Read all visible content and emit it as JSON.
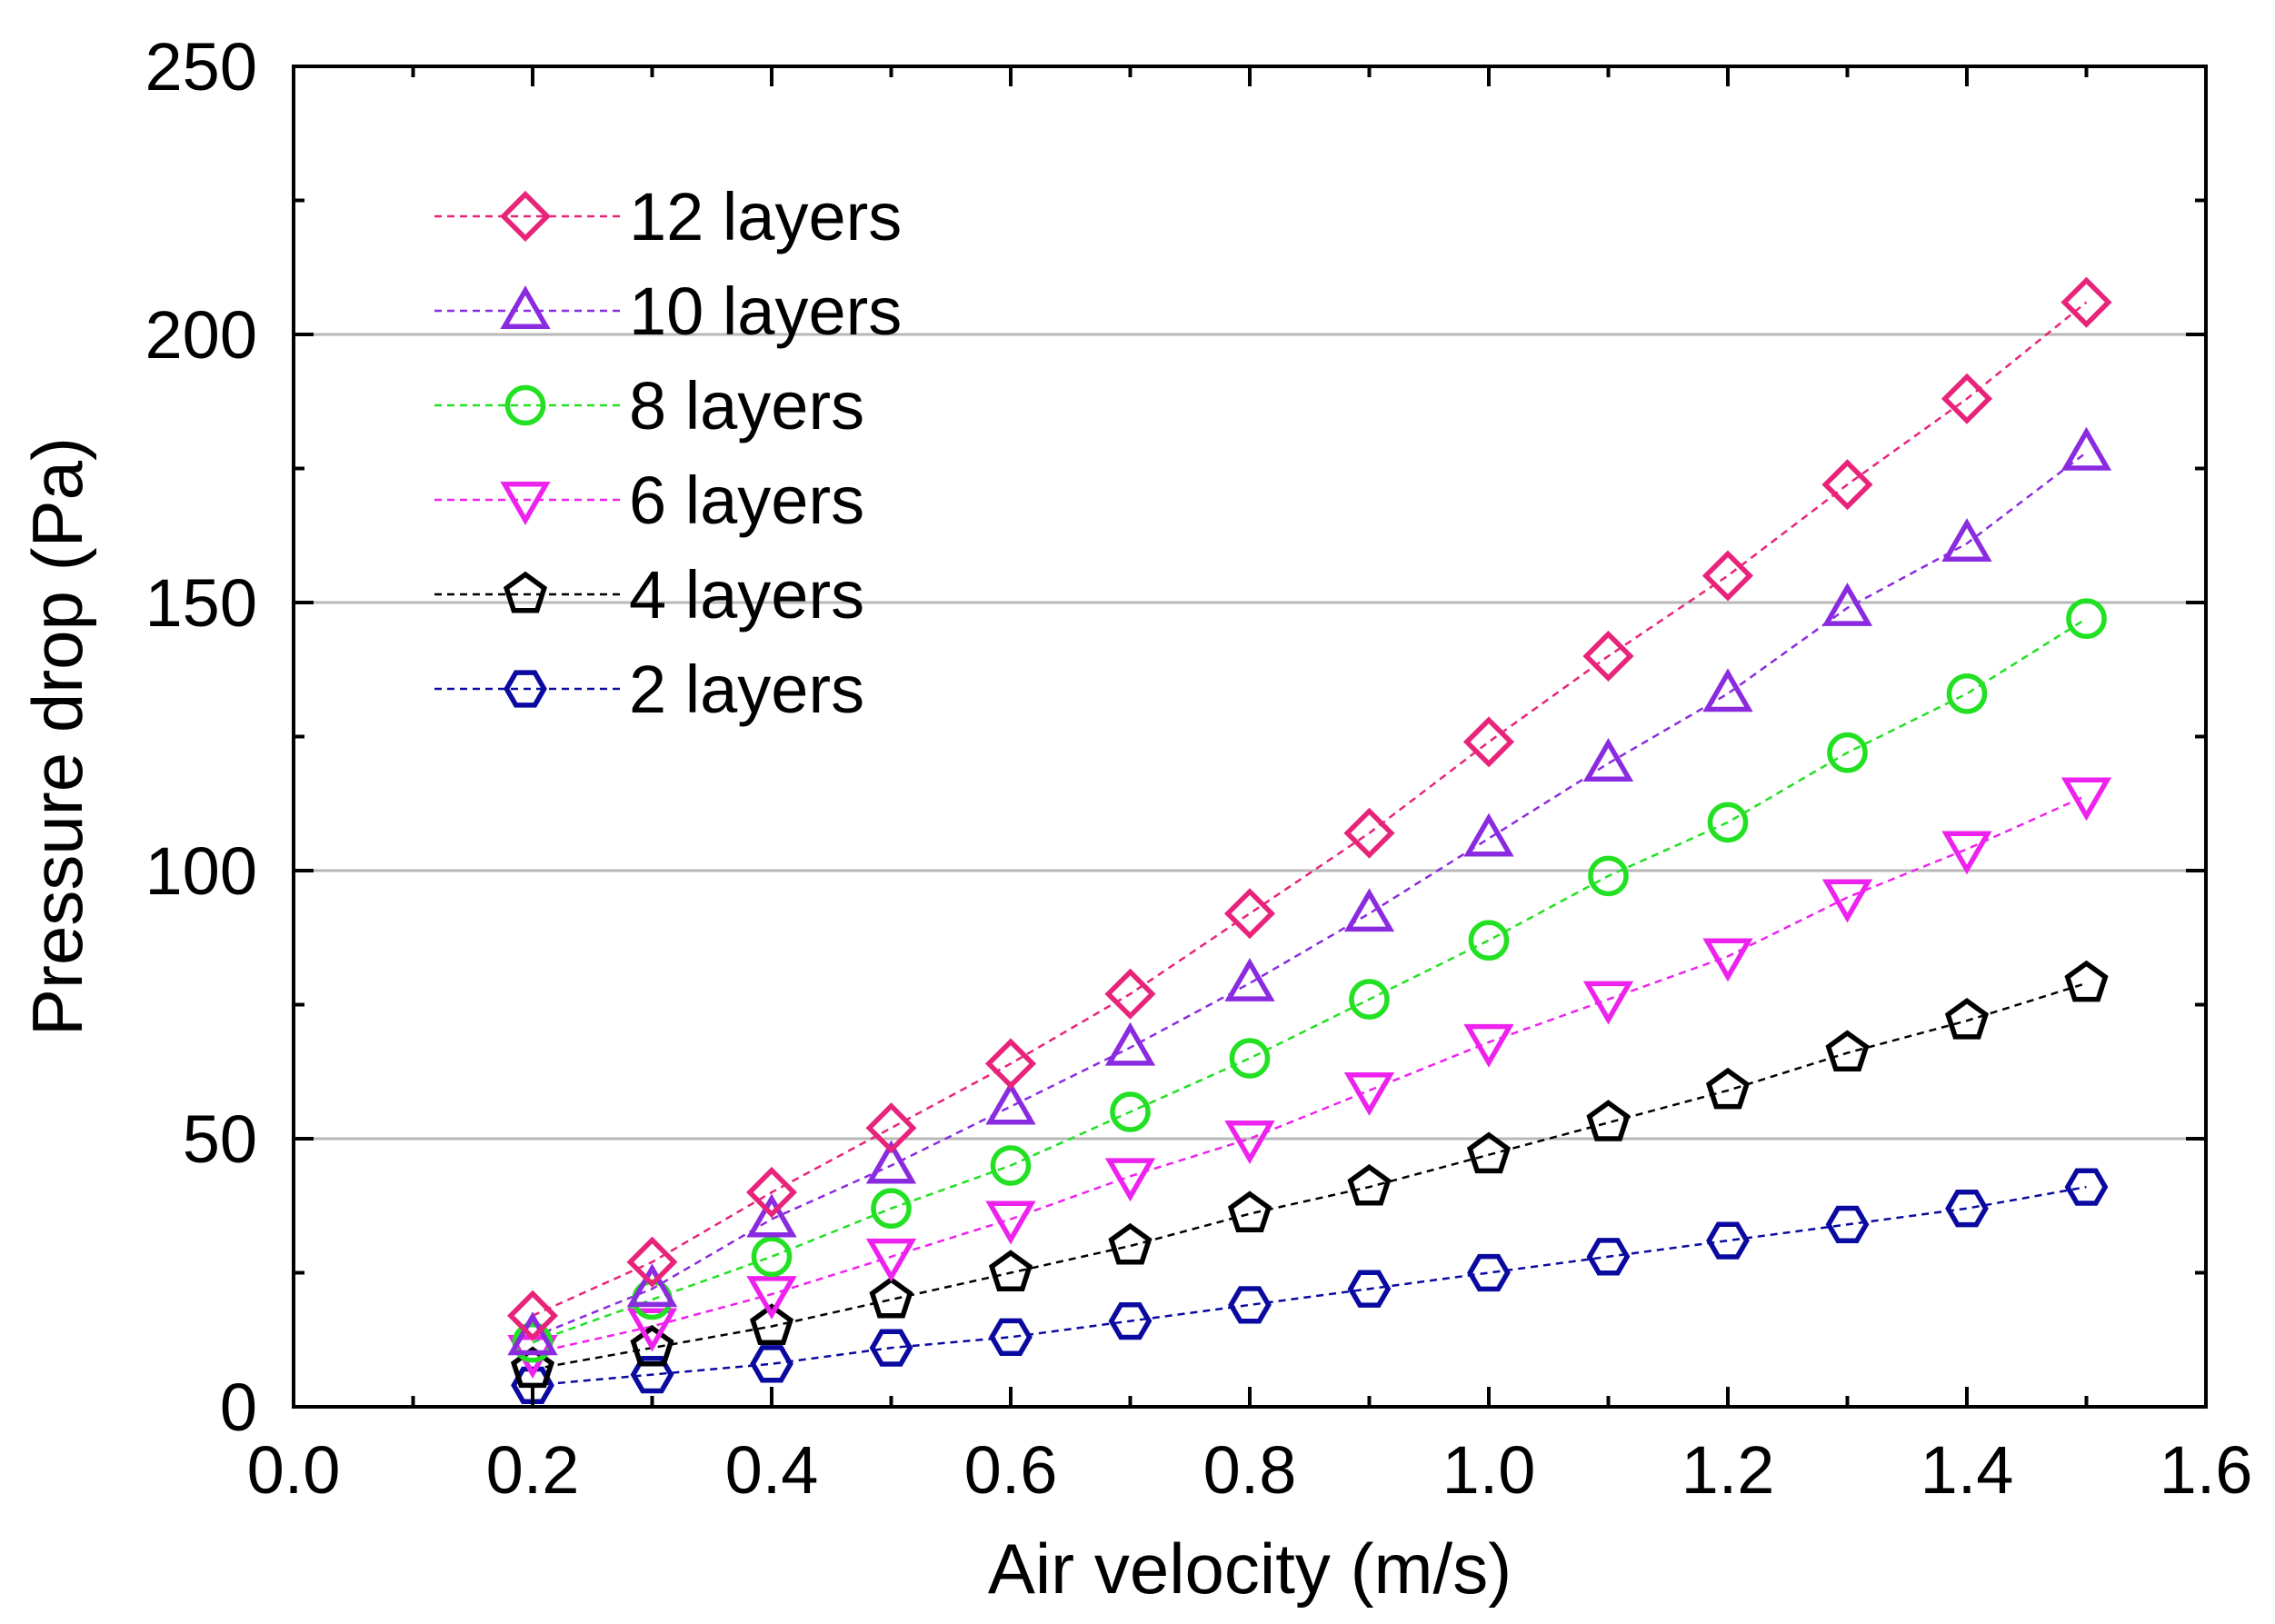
{
  "chart_data": {
    "type": "line",
    "title": "",
    "xlabel": "Air velocity (m/s)",
    "ylabel": "Pressure drop (Pa)",
    "xlim": [
      0.0,
      1.6
    ],
    "ylim": [
      0,
      250
    ],
    "x_ticks": [
      "0.0",
      "0.2",
      "0.4",
      "0.6",
      "0.8",
      "1.0",
      "1.2",
      "1.4",
      "1.6"
    ],
    "y_ticks": [
      "0",
      "50",
      "100",
      "150",
      "200",
      "250"
    ],
    "grid": "horizontal major gridlines",
    "legend_position": "top-left",
    "x": [
      0.2,
      0.3,
      0.4,
      0.5,
      0.6,
      0.7,
      0.8,
      0.9,
      1.0,
      1.1,
      1.2,
      1.3,
      1.4,
      1.5
    ],
    "series": [
      {
        "name": "12 layers",
        "marker": "diamond",
        "color": "#e8247a",
        "values": [
          17,
          27,
          40,
          52,
          64,
          77,
          92,
          107,
          124,
          140,
          155,
          172,
          188,
          206
        ]
      },
      {
        "name": "10 layers",
        "marker": "triangle-up",
        "color": "#8b2be0",
        "values": [
          13,
          22,
          35,
          45,
          56,
          67,
          79,
          92,
          106,
          120,
          133,
          149,
          161,
          178
        ]
      },
      {
        "name": "8 layers",
        "marker": "circle",
        "color": "#22e022",
        "values": [
          12,
          20,
          28,
          37,
          45,
          55,
          65,
          76,
          87,
          99,
          109,
          122,
          133,
          147
        ]
      },
      {
        "name": "6 layers",
        "marker": "triangle-down",
        "color": "#ee22ee",
        "values": [
          10,
          15,
          21,
          28,
          35,
          43,
          50,
          59,
          68,
          76,
          84,
          95,
          104,
          114
        ]
      },
      {
        "name": "4 layers",
        "marker": "pentagon",
        "color": "#000000",
        "values": [
          7,
          11,
          15,
          20,
          25,
          30,
          36,
          41,
          47,
          53,
          59,
          66,
          72,
          79
        ]
      },
      {
        "name": "2 layers",
        "marker": "hexagon",
        "color": "#0a0aa0",
        "values": [
          4,
          6,
          8,
          11,
          13,
          16,
          19,
          22,
          25,
          28,
          31,
          34,
          37,
          41
        ]
      }
    ]
  }
}
